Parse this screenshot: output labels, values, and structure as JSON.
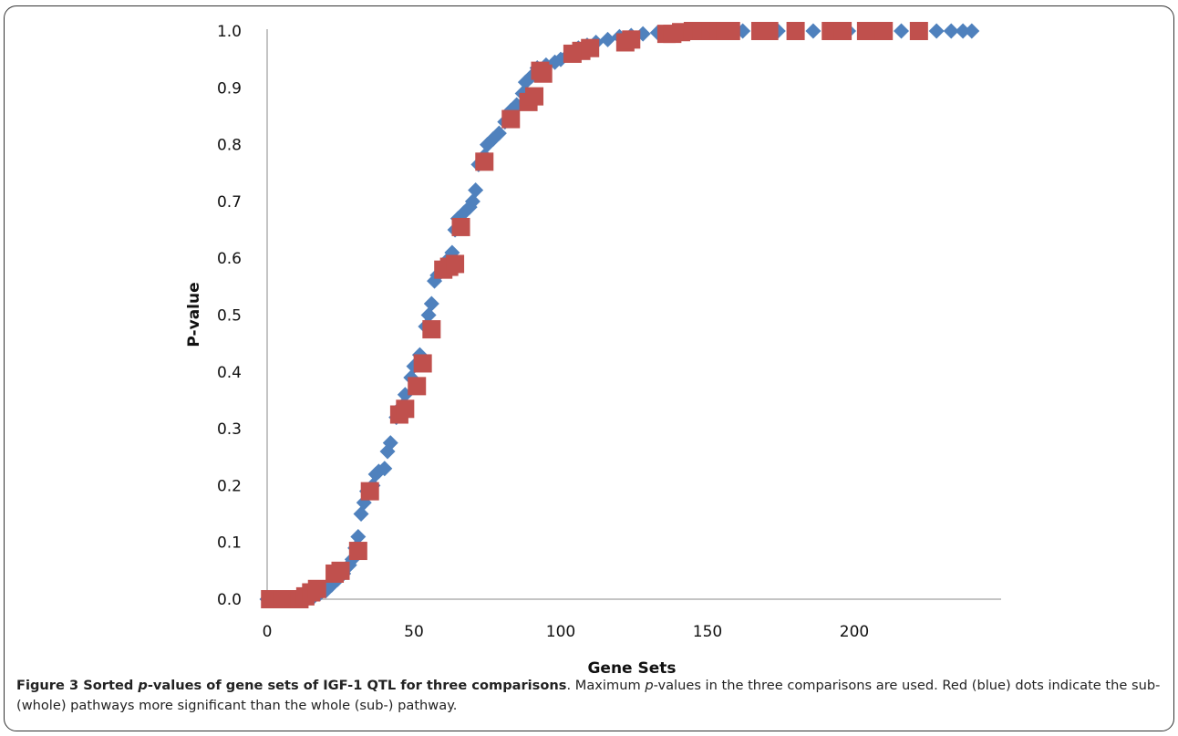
{
  "chart_data": {
    "type": "scatter",
    "title": "",
    "xlabel": "Gene Sets",
    "ylabel": "P-value",
    "xlim": [
      0,
      250
    ],
    "ylim": [
      0.0,
      1.0
    ],
    "xticks": [
      0,
      50,
      100,
      150,
      200
    ],
    "yticks": [
      0.0,
      0.1,
      0.2,
      0.3,
      0.4,
      0.5,
      0.6,
      0.7,
      0.8,
      0.9,
      1.0
    ],
    "grid": false,
    "legend": "none",
    "series": [
      {
        "color": "#4F81BD",
        "marker": "diamond",
        "points": [
          [
            0,
            0
          ],
          [
            2,
            0
          ],
          [
            4,
            0
          ],
          [
            6,
            0
          ],
          [
            8,
            0
          ],
          [
            10,
            0
          ],
          [
            12,
            0
          ],
          [
            14,
            0.002
          ],
          [
            16,
            0.005
          ],
          [
            18,
            0.01
          ],
          [
            20,
            0.015
          ],
          [
            22,
            0.025
          ],
          [
            24,
            0.035
          ],
          [
            26,
            0.045
          ],
          [
            28,
            0.06
          ],
          [
            29,
            0.07
          ],
          [
            30,
            0.09
          ],
          [
            31,
            0.11
          ],
          [
            32,
            0.15
          ],
          [
            33,
            0.17
          ],
          [
            34,
            0.19
          ],
          [
            36,
            0.2
          ],
          [
            37,
            0.22
          ],
          [
            38,
            0.225
          ],
          [
            40,
            0.23
          ],
          [
            41,
            0.26
          ],
          [
            42,
            0.275
          ],
          [
            44,
            0.32
          ],
          [
            46,
            0.34
          ],
          [
            47,
            0.36
          ],
          [
            49,
            0.39
          ],
          [
            50,
            0.41
          ],
          [
            52,
            0.43
          ],
          [
            54,
            0.48
          ],
          [
            55,
            0.5
          ],
          [
            56,
            0.52
          ],
          [
            57,
            0.56
          ],
          [
            58,
            0.57
          ],
          [
            60,
            0.58
          ],
          [
            62,
            0.6
          ],
          [
            63,
            0.61
          ],
          [
            64,
            0.65
          ],
          [
            65,
            0.67
          ],
          [
            67,
            0.68
          ],
          [
            69,
            0.69
          ],
          [
            70,
            0.7
          ],
          [
            71,
            0.72
          ],
          [
            72,
            0.765
          ],
          [
            74,
            0.78
          ],
          [
            75,
            0.8
          ],
          [
            77,
            0.81
          ],
          [
            79,
            0.82
          ],
          [
            81,
            0.84
          ],
          [
            83,
            0.86
          ],
          [
            85,
            0.87
          ],
          [
            87,
            0.89
          ],
          [
            88,
            0.91
          ],
          [
            90,
            0.92
          ],
          [
            92,
            0.935
          ],
          [
            95,
            0.94
          ],
          [
            98,
            0.945
          ],
          [
            100,
            0.95
          ],
          [
            103,
            0.96
          ],
          [
            106,
            0.97
          ],
          [
            109,
            0.975
          ],
          [
            112,
            0.98
          ],
          [
            116,
            0.985
          ],
          [
            120,
            0.99
          ],
          [
            124,
            0.992
          ],
          [
            128,
            0.995
          ],
          [
            133,
            0.997
          ],
          [
            138,
            0.998
          ],
          [
            144,
            0.999
          ],
          [
            150,
            1.0
          ],
          [
            156,
            1.0
          ],
          [
            162,
            1.0
          ],
          [
            168,
            1.0
          ],
          [
            174,
            1.0
          ],
          [
            180,
            1.0
          ],
          [
            186,
            1.0
          ],
          [
            192,
            1.0
          ],
          [
            198,
            1.0
          ],
          [
            204,
            1.0
          ],
          [
            210,
            1.0
          ],
          [
            216,
            1.0
          ],
          [
            222,
            1.0
          ],
          [
            228,
            1.0
          ],
          [
            233,
            1.0
          ],
          [
            237,
            1.0
          ],
          [
            240,
            1.0
          ]
        ]
      },
      {
        "color": "#C0504D",
        "marker": "square",
        "points": [
          [
            1,
            0
          ],
          [
            3,
            0
          ],
          [
            5,
            0
          ],
          [
            7,
            0
          ],
          [
            9,
            0
          ],
          [
            11,
            0
          ],
          [
            13,
            0.005
          ],
          [
            15,
            0.012
          ],
          [
            17,
            0.018
          ],
          [
            23,
            0.045
          ],
          [
            25,
            0.05
          ],
          [
            31,
            0.085
          ],
          [
            35,
            0.19
          ],
          [
            45,
            0.325
          ],
          [
            47,
            0.335
          ],
          [
            51,
            0.375
          ],
          [
            53,
            0.415
          ],
          [
            56,
            0.475
          ],
          [
            60,
            0.58
          ],
          [
            62,
            0.585
          ],
          [
            64,
            0.59
          ],
          [
            66,
            0.655
          ],
          [
            74,
            0.77
          ],
          [
            83,
            0.845
          ],
          [
            89,
            0.875
          ],
          [
            91,
            0.885
          ],
          [
            93,
            0.93
          ],
          [
            94,
            0.925
          ],
          [
            104,
            0.96
          ],
          [
            107,
            0.965
          ],
          [
            110,
            0.97
          ],
          [
            122,
            0.98
          ],
          [
            124,
            0.985
          ],
          [
            136,
            0.995
          ],
          [
            138,
            0.995
          ],
          [
            141,
            0.998
          ],
          [
            145,
            1.0
          ],
          [
            148,
            1.0
          ],
          [
            151,
            1.0
          ],
          [
            154,
            1.0
          ],
          [
            156,
            1.0
          ],
          [
            158,
            1.0
          ],
          [
            168,
            1.0
          ],
          [
            171,
            1.0
          ],
          [
            180,
            1.0
          ],
          [
            192,
            1.0
          ],
          [
            194,
            1.0
          ],
          [
            196,
            1.0
          ],
          [
            204,
            1.0
          ],
          [
            206,
            1.0
          ],
          [
            210,
            1.0
          ],
          [
            222,
            1.0
          ]
        ]
      }
    ]
  },
  "caption": {
    "label": "Figure 3",
    "title_pre": "Sorted ",
    "title_italic": "p",
    "title_post": "-values of gene sets of IGF-1 QTL for three comparisons",
    "text_1": ". Maximum ",
    "text_italic": "p",
    "text_2": "-values in the three comparisons are used. Red (blue) dots indicate the sub- (whole) pathways more significant than the whole (sub-) pathway."
  }
}
